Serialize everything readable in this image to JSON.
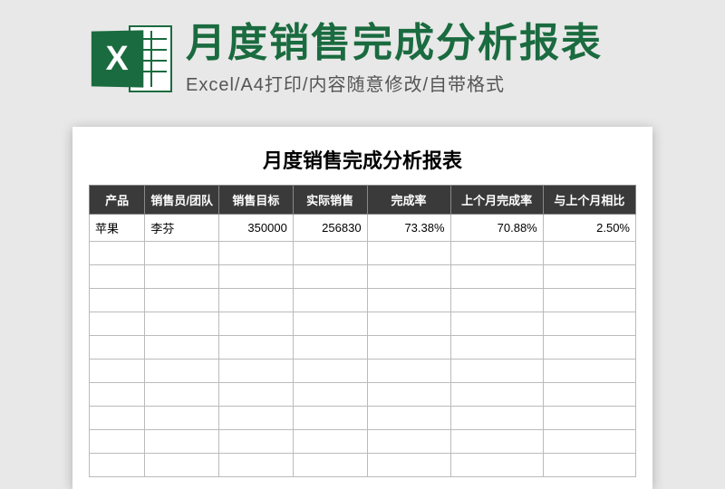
{
  "header": {
    "iconLetter": "X",
    "mainTitle": "月度销售完成分析报表",
    "subtitle": "Excel/A4打印/内容随意修改/自带格式"
  },
  "document": {
    "title": "月度销售完成分析报表",
    "columns": [
      "产品",
      "销售员/团队",
      "销售目标",
      "实际销售",
      "完成率",
      "上个月完成率",
      "与上个月相比"
    ],
    "rows": [
      {
        "product": "苹果",
        "salesperson": "李芬",
        "target": "350000",
        "actual": "256830",
        "rate": "73.38%",
        "prevRate": "70.88%",
        "diff": "2.50%"
      }
    ],
    "emptyRows": 10
  },
  "style": {
    "brandColor": "#1a6b3f",
    "headerBg": "#3a3a3a",
    "pageBg": "#e8e8e8",
    "docBg": "#ffffff",
    "borderColor": "#bbbbbb",
    "titleFontSize": 44,
    "subtitleFontSize": 20,
    "docTitleFontSize": 22,
    "cellFontSize": 13
  }
}
